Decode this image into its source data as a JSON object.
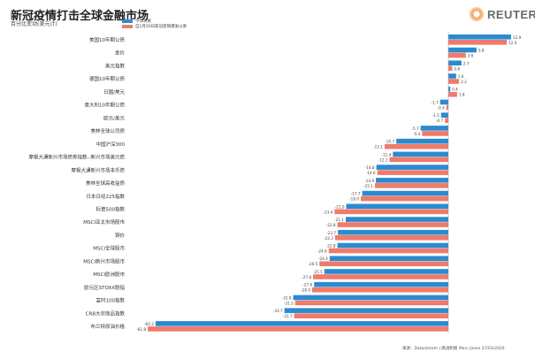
{
  "header": {
    "title": "新冠疫情打击全球金融市场",
    "subtitle": "百分比变动(美元计)"
  },
  "logo": {
    "text": "REUTERS"
  },
  "footer": {
    "source": "来源：Datastream | 路透制图 Marc Jones 27/03/2020"
  },
  "chart_data": {
    "type": "bar",
    "orientation": "horizontal",
    "title": "新冠疫情打击全球金融市场",
    "xlabel": "百分比变动(美元计)",
    "legend_position": "top-left",
    "colors": {
      "ytd": "#2b8ad0",
      "since_jan20": "#ef7b6b"
    },
    "categories": [
      "美国10年期公债",
      "金价",
      "美元指数",
      "德国10年期公债",
      "日圆/美元",
      "意大利10年期公债",
      "欧元/美元",
      "美林全球公司债",
      "中国沪深300",
      "摩根大通新兴市场债券指数--新兴市场美元债",
      "摩根大通新兴市场本币债",
      "美林全球高收益债",
      "日本日经225指数",
      "标普500指数",
      "MSCI亚太市场股市",
      "铜价",
      "MSCI全球股市",
      "MSCI新兴市场股市",
      "MSCI欧洲股市",
      "欧元区STOXX股指",
      "富时100指数",
      "CRB大宗商品指数",
      "布兰特原油价格"
    ],
    "series": [
      {
        "name": "今年以来",
        "values": [
          12.9,
          5.8,
          2.7,
          1.6,
          0.4,
          -1.7,
          -1.5,
          -5.7,
          -10.7,
          -11.4,
          -14.8,
          -14.9,
          -17.7,
          -21.0,
          -21.1,
          -22.7,
          -22.8,
          -24.4,
          -25.5,
          -27.6,
          -31.9,
          -33.7,
          -60.2
        ]
      },
      {
        "name": "自1月20日新冠疫情爆发以来",
        "values": [
          12.0,
          3.6,
          0.8,
          2.2,
          1.8,
          -0.4,
          -0.7,
          -5.4,
          -13.1,
          -12.1,
          -14.6,
          -15.1,
          -18.0,
          -23.4,
          -22.8,
          -23.3,
          -24.6,
          -26.5,
          -27.8,
          -28.0,
          -31.5,
          -31.7,
          -61.8
        ]
      }
    ]
  }
}
